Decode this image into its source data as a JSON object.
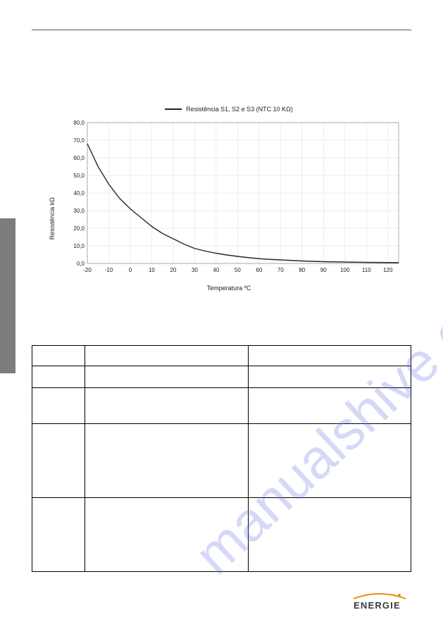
{
  "chart": {
    "type": "line",
    "legend_text": "Resistência S1, S2 e S3 (NTC 10 KΩ)",
    "y_label": "Resistência kΩ",
    "x_label": "Temperatura ºC",
    "x_ticks": [
      -20,
      -10,
      0,
      10,
      20,
      30,
      40,
      50,
      60,
      70,
      80,
      90,
      100,
      110,
      120
    ],
    "y_ticks": [
      0,
      10,
      20,
      30,
      40,
      50,
      60,
      70,
      80
    ],
    "xlim": [
      -20,
      125
    ],
    "ylim": [
      0,
      80
    ],
    "grid_color": "#dcdcdc",
    "axis_color": "#999999",
    "curve_color": "#1a2b3a",
    "background_color": "#ffffff",
    "points": [
      [
        -20,
        68
      ],
      [
        -15,
        55
      ],
      [
        -10,
        45
      ],
      [
        -5,
        37
      ],
      [
        0,
        31
      ],
      [
        5,
        26
      ],
      [
        10,
        21
      ],
      [
        15,
        17
      ],
      [
        20,
        14
      ],
      [
        25,
        11
      ],
      [
        30,
        8.5
      ],
      [
        35,
        7
      ],
      [
        40,
        5.8
      ],
      [
        45,
        4.8
      ],
      [
        50,
        4
      ],
      [
        55,
        3.3
      ],
      [
        60,
        2.7
      ],
      [
        65,
        2.3
      ],
      [
        70,
        2.0
      ],
      [
        75,
        1.7
      ],
      [
        80,
        1.4
      ],
      [
        85,
        1.2
      ],
      [
        90,
        1.0
      ],
      [
        95,
        0.9
      ],
      [
        100,
        0.8
      ],
      [
        105,
        0.7
      ],
      [
        110,
        0.6
      ],
      [
        115,
        0.55
      ],
      [
        120,
        0.5
      ],
      [
        125,
        0.45
      ]
    ]
  },
  "table": {
    "rows": [
      [
        {
          "text": ""
        },
        {
          "text": ""
        },
        {
          "text": ""
        }
      ],
      [
        {
          "text": ""
        },
        {
          "text": ""
        },
        {
          "text": ""
        }
      ],
      [
        {
          "text": ""
        },
        {
          "text": ""
        },
        {
          "text": ""
        }
      ],
      [
        {
          "text": ""
        },
        {
          "text": ""
        },
        {
          "text": ""
        }
      ],
      [
        {
          "text": ""
        },
        {
          "text": ""
        },
        {
          "text": ""
        }
      ]
    ]
  },
  "logo": {
    "text": "ENERGIE",
    "arc_color": "#f28c00",
    "dot_color": "#f28c00",
    "text_color": "#3a3a3a"
  },
  "watermark": {
    "text": "manualshive.com",
    "color": "rgba(105,115,225,0.28)"
  }
}
